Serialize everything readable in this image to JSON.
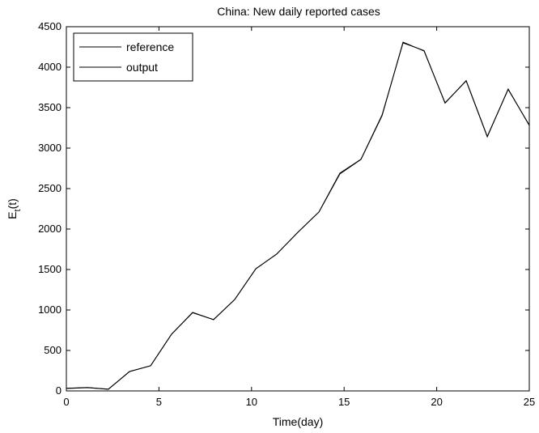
{
  "chart_data": {
    "type": "line",
    "title": "China: New daily reported cases",
    "xlabel": "Time(day)",
    "ylabel": "E",
    "ylabel_sub": "t",
    "ylabel_suffix": "(t)",
    "xlim": [
      0,
      25
    ],
    "ylim": [
      0,
      4500
    ],
    "xticks": [
      0,
      5,
      10,
      15,
      20,
      25
    ],
    "yticks": [
      0,
      500,
      1000,
      1500,
      2000,
      2500,
      3000,
      3500,
      4000,
      4500
    ],
    "grid": false,
    "legend_position": "top-left",
    "series": [
      {
        "name": "reference",
        "color": "#000000",
        "x": [
          0,
          1.14,
          2.27,
          3.41,
          4.55,
          5.68,
          6.82,
          7.95,
          9.09,
          10.23,
          11.36,
          12.5,
          13.64,
          14.77,
          15.91,
          17.05,
          18.18,
          19.32,
          20.45,
          21.59,
          22.73,
          23.86,
          25
        ],
        "y": [
          30,
          40,
          20,
          240,
          310,
          700,
          970,
          880,
          1130,
          1510,
          1690,
          1960,
          2210,
          2680,
          2860,
          3400,
          4310,
          4200,
          3560,
          3830,
          3140,
          3730,
          3280
        ]
      },
      {
        "name": "output",
        "color": "#000000",
        "x": [
          0,
          1.14,
          2.27,
          3.41,
          4.55,
          5.68,
          6.82,
          7.95,
          9.09,
          10.23,
          11.36,
          12.5,
          13.64,
          14.77,
          15.91,
          17.05,
          18.18,
          19.32,
          20.45,
          21.59,
          22.73,
          23.86,
          25
        ],
        "y": [
          32,
          42,
          22,
          238,
          312,
          702,
          966,
          882,
          1128,
          1508,
          1692,
          1958,
          2212,
          2690,
          2862,
          3410,
          4300,
          4205,
          3555,
          3835,
          3145,
          3725,
          3285
        ]
      }
    ]
  }
}
